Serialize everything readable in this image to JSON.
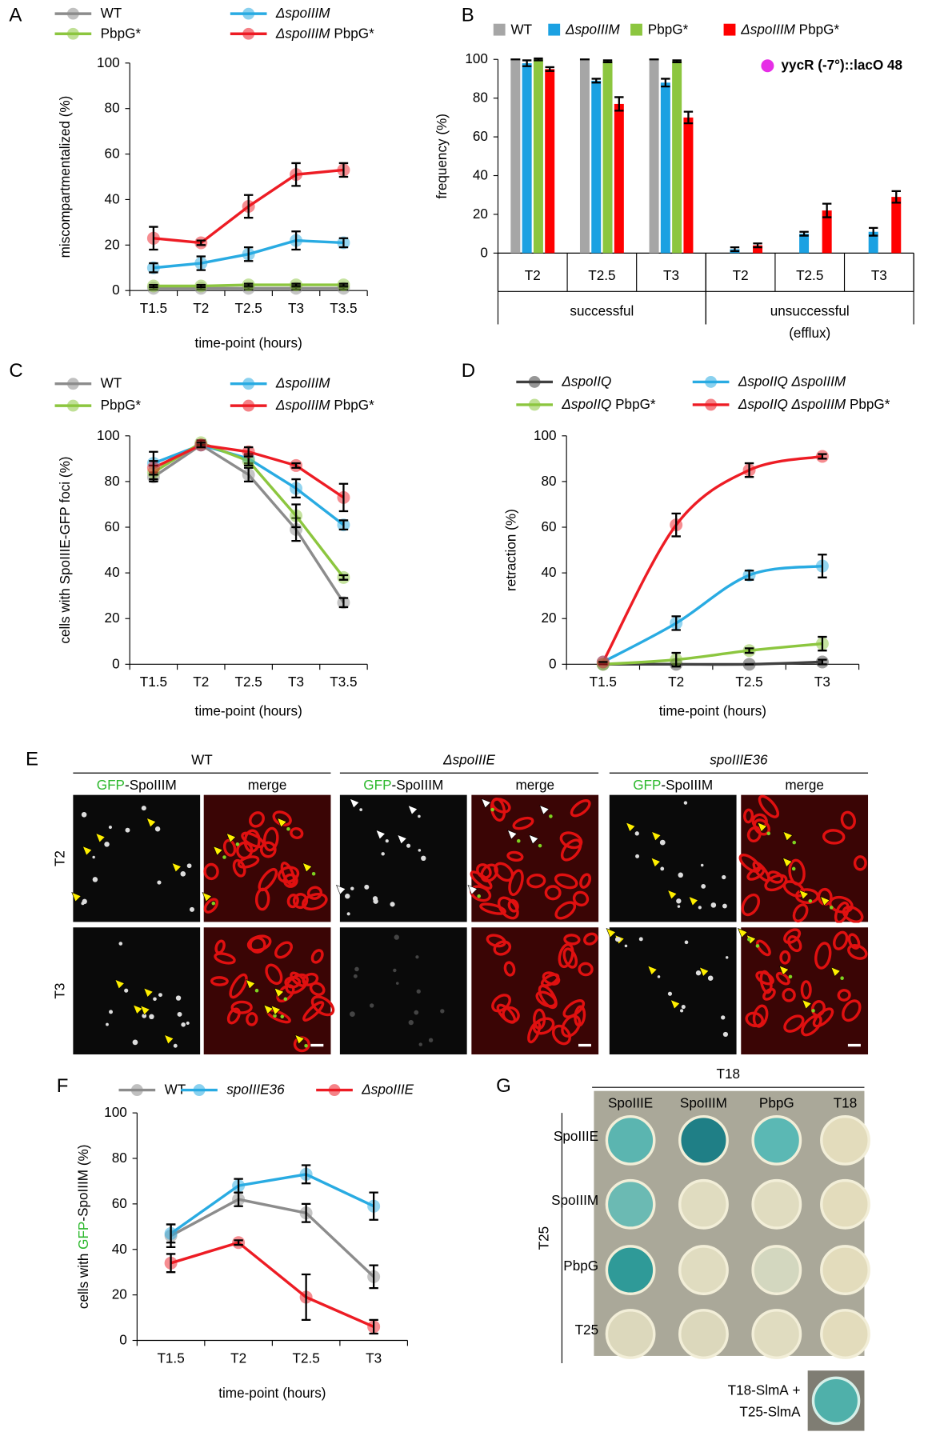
{
  "chart_data": [
    {
      "type": "line",
      "panel": "A",
      "y_label": "miscompartmentalized (%)",
      "x_label": "time-point (hours)",
      "categories": [
        "T1.5",
        "T2",
        "T2.5",
        "T3",
        "T3.5"
      ],
      "ylim": [
        0,
        100
      ],
      "yticks": [
        0,
        20,
        40,
        60,
        80,
        100
      ],
      "series": [
        {
          "name": "WT",
          "color": "#8c8c8c",
          "values": [
            1,
            1,
            1,
            1,
            1
          ],
          "errors": [
            0.5,
            0.5,
            0.5,
            0.5,
            0.5
          ]
        },
        {
          "name": "ΔspoIIIM",
          "color": "#29abe2",
          "values": [
            10,
            12,
            16,
            22,
            21
          ],
          "errors": [
            2,
            3,
            3,
            4,
            2
          ]
        },
        {
          "name": "PbpG*",
          "color": "#8cc63f",
          "values": [
            2,
            2,
            2.5,
            2.5,
            2.5
          ],
          "errors": [
            0.5,
            0.5,
            0.5,
            0.5,
            0.5
          ]
        },
        {
          "name": "ΔspoIIIM PbpG*",
          "color": "#ed1c24",
          "values": [
            23,
            21,
            37,
            51,
            53
          ],
          "errors": [
            5,
            1,
            5,
            5,
            3
          ]
        }
      ]
    },
    {
      "type": "bar",
      "panel": "B",
      "y_label": "frequency (%)",
      "categories": [
        "T2",
        "T2.5",
        "T3",
        "T2",
        "T2.5",
        "T3"
      ],
      "groups": [
        {
          "label": [
            "successful"
          ],
          "size": 3
        },
        {
          "label": [
            "unsuccessful",
            "(efflux)"
          ],
          "size": 3
        }
      ],
      "annotation": "yycR (-7°)::lacO 48",
      "annotation_color": "#e62ee6",
      "ylim": [
        0,
        100
      ],
      "yticks": [
        0,
        20,
        40,
        60,
        80,
        100
      ],
      "series": [
        {
          "name": "WT",
          "color": "#a6a6a6",
          "values": [
            100,
            100,
            100,
            0,
            0,
            0
          ],
          "errors": [
            0,
            0,
            0,
            0,
            0,
            0
          ]
        },
        {
          "name": "ΔspoIIIM",
          "color": "#1ba1e2",
          "values": [
            98,
            89,
            88,
            2,
            10,
            11
          ],
          "errors": [
            1.5,
            1,
            2,
            1,
            1,
            2
          ]
        },
        {
          "name": "PbpG*",
          "color": "#8cc63f",
          "values": [
            100,
            99,
            99,
            0,
            0,
            0
          ],
          "errors": [
            0.5,
            0.5,
            0.5,
            0,
            0,
            0
          ]
        },
        {
          "name": "ΔspoIIIM PbpG*",
          "color": "#ff0000",
          "values": [
            95,
            77,
            70,
            4,
            22,
            29
          ],
          "errors": [
            1,
            3.5,
            3,
            1,
            3.5,
            3
          ]
        }
      ]
    },
    {
      "type": "line",
      "panel": "C",
      "y_label": "cells with SpoIIIE-GFP foci (%)",
      "x_label": "time-point (hours)",
      "categories": [
        "T1.5",
        "T2",
        "T2.5",
        "T3",
        "T3.5"
      ],
      "ylim": [
        0,
        100
      ],
      "yticks": [
        0,
        20,
        40,
        60,
        80,
        100
      ],
      "series": [
        {
          "name": "WT",
          "color": "#8c8c8c",
          "values": [
            82,
            96,
            83,
            59,
            27
          ],
          "errors": [
            2,
            1,
            3,
            5,
            2
          ]
        },
        {
          "name": "ΔspoIIIM",
          "color": "#29abe2",
          "values": [
            88,
            96,
            90,
            77,
            61
          ],
          "errors": [
            5,
            1,
            2,
            4,
            2
          ]
        },
        {
          "name": "PbpG*",
          "color": "#8cc63f",
          "values": [
            84,
            97,
            89,
            65,
            38
          ],
          "errors": [
            3,
            1,
            2,
            5,
            1
          ]
        },
        {
          "name": "ΔspoIIIM PbpG*",
          "color": "#ed1c24",
          "values": [
            86,
            96,
            93,
            87,
            73
          ],
          "errors": [
            3,
            1,
            2,
            1,
            6
          ]
        }
      ]
    },
    {
      "type": "line",
      "panel": "D",
      "smooth": true,
      "y_label": "retraction (%)",
      "x_label": "time-point (hours)",
      "categories": [
        "T1.5",
        "T2",
        "T2.5",
        "T3"
      ],
      "ylim": [
        0,
        100
      ],
      "yticks": [
        0,
        20,
        40,
        60,
        80,
        100
      ],
      "series": [
        {
          "name": "ΔspoIIQ",
          "color": "#404040",
          "values": [
            0,
            0,
            0,
            1
          ],
          "errors": [
            0,
            0,
            0,
            1
          ]
        },
        {
          "name": "ΔspoIIQ ΔspoIIIM",
          "color": "#29abe2",
          "values": [
            1,
            18,
            39,
            43
          ],
          "errors": [
            0,
            3,
            2,
            5
          ]
        },
        {
          "name": "ΔspoIIQ PbpG*",
          "color": "#8cc63f",
          "values": [
            0,
            2,
            6,
            9
          ],
          "errors": [
            0,
            3,
            1,
            3
          ]
        },
        {
          "name": "ΔspoIIQ ΔspoIIIM PbpG*",
          "color": "#ed1c24",
          "values": [
            1,
            61,
            85,
            91
          ],
          "errors": [
            0,
            5,
            3,
            1
          ]
        }
      ]
    },
    {
      "type": "line",
      "panel": "F",
      "y_label": "cells with GFP-SpoIIIM (%)",
      "x_label": "time-point (hours)",
      "categories": [
        "T1.5",
        "T2",
        "T2.5",
        "T3"
      ],
      "ylim": [
        0,
        100
      ],
      "yticks": [
        0,
        20,
        40,
        60,
        80,
        100
      ],
      "series": [
        {
          "name": "WT",
          "color": "#8c8c8c",
          "values": [
            46,
            62,
            56,
            28
          ],
          "errors": [
            5,
            3,
            4,
            5
          ]
        },
        {
          "name": "spoIIIE36",
          "color": "#29abe2",
          "values": [
            47,
            68,
            73,
            59
          ],
          "errors": [
            4,
            3,
            4,
            6
          ]
        },
        {
          "name": "ΔspoIIIE",
          "color": "#ed1c24",
          "values": [
            34,
            43,
            19,
            6
          ],
          "errors": [
            4,
            1,
            10,
            3
          ]
        }
      ]
    }
  ],
  "panel_e": {
    "letter": "E",
    "strains": [
      "WT",
      "ΔspoIIIE",
      "spoIIIE36"
    ],
    "channels": [
      "GFP-SpoIIIM",
      "merge"
    ],
    "timepoints": [
      "T2",
      "T3"
    ]
  },
  "panel_g": {
    "letter": "G",
    "column_header": "T18",
    "columns": [
      "SpoIIIE",
      "SpoIIIM",
      "PbpG",
      "T18"
    ],
    "row_header": "T25",
    "rows": [
      "SpoIIIE",
      "SpoIIIM",
      "PbpG",
      "T25"
    ],
    "inset_label": [
      "T18-SlmA +",
      "T25-SlmA"
    ]
  }
}
